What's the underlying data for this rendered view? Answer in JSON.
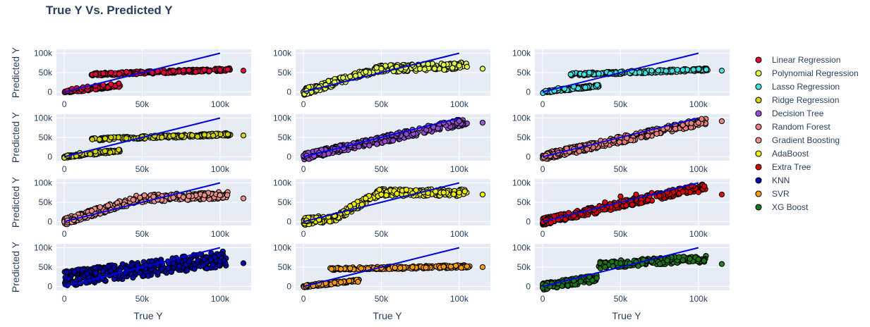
{
  "chart_data": {
    "type": "scatter",
    "title": "True Y Vs. Predicted Y",
    "xlabel": "True Y",
    "ylabel": "Predicted Y",
    "xlim": [
      -5000,
      120000
    ],
    "x_ticks": [
      0,
      50000,
      100000
    ],
    "x_tick_labels": [
      "0",
      "50k",
      "100k"
    ],
    "y_ticks": [
      0,
      50000,
      100000
    ],
    "y_tick_labels": [
      "0",
      "50k",
      "100k"
    ],
    "identity_line": {
      "from": [
        0,
        0
      ],
      "to": [
        100000,
        100000
      ],
      "color": "#0000dd"
    },
    "legend_position": "right",
    "panels": [
      {
        "name": "Linear Regression",
        "color": "#e8003a",
        "ylim": [
          -10000,
          110000
        ],
        "pattern": "flat",
        "points": [
          [
            2000,
            3000
          ],
          [
            5000,
            8000
          ],
          [
            8000,
            10000
          ],
          [
            12000,
            12000
          ],
          [
            15000,
            14000
          ],
          [
            20000,
            16000
          ],
          [
            25000,
            18000
          ],
          [
            30000,
            20000
          ],
          [
            35000,
            22000
          ],
          [
            18000,
            45000
          ],
          [
            20000,
            46000
          ],
          [
            25000,
            48000
          ],
          [
            30000,
            50000
          ],
          [
            40000,
            52000
          ],
          [
            50000,
            52000
          ],
          [
            60000,
            53000
          ],
          [
            70000,
            55000
          ],
          [
            80000,
            56000
          ],
          [
            90000,
            57000
          ],
          [
            100000,
            57000
          ],
          [
            105000,
            58000
          ],
          [
            115000,
            55000
          ]
        ]
      },
      {
        "name": "Polynomial Regression",
        "color": "#e6ff3f",
        "ylim": [
          -10000,
          110000
        ],
        "pattern": "poly",
        "points": [
          [
            2000,
            3000
          ],
          [
            10000,
            12000
          ],
          [
            20000,
            25000
          ],
          [
            30000,
            40000
          ],
          [
            40000,
            52000
          ],
          [
            50000,
            60000
          ],
          [
            60000,
            65000
          ],
          [
            70000,
            70000
          ],
          [
            80000,
            72000
          ],
          [
            90000,
            70000
          ],
          [
            100000,
            68000
          ],
          [
            105000,
            65000
          ],
          [
            115000,
            60000
          ]
        ]
      },
      {
        "name": "Lasso Regression",
        "color": "#3fe6e6",
        "ylim": [
          -10000,
          110000
        ],
        "pattern": "flat",
        "points": [
          [
            2000,
            3000
          ],
          [
            10000,
            10000
          ],
          [
            20000,
            14000
          ],
          [
            35000,
            18000
          ],
          [
            18000,
            45000
          ],
          [
            30000,
            50000
          ],
          [
            50000,
            52000
          ],
          [
            70000,
            55000
          ],
          [
            90000,
            57000
          ],
          [
            105000,
            58000
          ],
          [
            115000,
            55000
          ]
        ]
      },
      {
        "name": "Ridge Regression",
        "color": "#d4d400",
        "ylim": [
          -10000,
          110000
        ],
        "pattern": "flat",
        "points": [
          [
            2000,
            3000
          ],
          [
            10000,
            10000
          ],
          [
            20000,
            14000
          ],
          [
            35000,
            18000
          ],
          [
            18000,
            45000
          ],
          [
            30000,
            50000
          ],
          [
            50000,
            52000
          ],
          [
            70000,
            55000
          ],
          [
            90000,
            57000
          ],
          [
            105000,
            58000
          ],
          [
            115000,
            55000
          ]
        ]
      },
      {
        "name": "Decision Tree",
        "color": "#9a4bd9",
        "ylim": [
          -10000,
          110000
        ],
        "pattern": "tree",
        "points": [
          [
            2000,
            3000
          ],
          [
            10000,
            10000
          ],
          [
            20000,
            20000
          ],
          [
            30000,
            30000
          ],
          [
            40000,
            40000
          ],
          [
            50000,
            50000
          ],
          [
            60000,
            60000
          ],
          [
            70000,
            70000
          ],
          [
            80000,
            80000
          ],
          [
            90000,
            88000
          ],
          [
            100000,
            92000
          ],
          [
            115000,
            88000
          ]
        ]
      },
      {
        "name": "Random Forest",
        "color": "#f08080",
        "ylim": [
          -10000,
          110000
        ],
        "pattern": "tree",
        "points": [
          [
            2000,
            3000
          ],
          [
            10000,
            10000
          ],
          [
            20000,
            20000
          ],
          [
            30000,
            30000
          ],
          [
            40000,
            40000
          ],
          [
            50000,
            50000
          ],
          [
            60000,
            60000
          ],
          [
            70000,
            68000
          ],
          [
            80000,
            75000
          ],
          [
            90000,
            82000
          ],
          [
            100000,
            88000
          ],
          [
            115000,
            92000
          ]
        ]
      },
      {
        "name": "Gradient Boosting",
        "color": "#f09088",
        "ylim": [
          -10000,
          110000
        ],
        "pattern": "poly",
        "points": [
          [
            2000,
            3000
          ],
          [
            10000,
            10000
          ],
          [
            20000,
            20000
          ],
          [
            30000,
            30000
          ],
          [
            40000,
            40000
          ],
          [
            50000,
            50000
          ],
          [
            60000,
            57000
          ],
          [
            70000,
            62000
          ],
          [
            80000,
            66000
          ],
          [
            90000,
            68000
          ],
          [
            100000,
            68000
          ],
          [
            115000,
            60000
          ]
        ]
      },
      {
        "name": "AdaBoost",
        "color": "#f2f200",
        "ylim": [
          -10000,
          110000
        ],
        "pattern": "ada",
        "points": [
          [
            2000,
            3000
          ],
          [
            10000,
            5000
          ],
          [
            20000,
            15000
          ],
          [
            30000,
            40000
          ],
          [
            40000,
            60000
          ],
          [
            50000,
            70000
          ],
          [
            60000,
            72000
          ],
          [
            70000,
            73000
          ],
          [
            80000,
            74000
          ],
          [
            90000,
            75000
          ],
          [
            100000,
            75000
          ],
          [
            115000,
            70000
          ]
        ]
      },
      {
        "name": "Extra Tree",
        "color": "#e00000",
        "ylim": [
          -10000,
          110000
        ],
        "pattern": "tree",
        "points": [
          [
            2000,
            3000
          ],
          [
            10000,
            5000
          ],
          [
            20000,
            15000
          ],
          [
            30000,
            30000
          ],
          [
            40000,
            50000
          ],
          [
            50000,
            65000
          ],
          [
            60000,
            70000
          ],
          [
            70000,
            74000
          ],
          [
            80000,
            76000
          ],
          [
            90000,
            77000
          ],
          [
            100000,
            76000
          ],
          [
            115000,
            70000
          ]
        ]
      },
      {
        "name": "KNN",
        "color": "#0000b0",
        "ylim": [
          -10000,
          110000
        ],
        "pattern": "knn",
        "points": [
          [
            2000,
            3000
          ],
          [
            10000,
            20000
          ],
          [
            20000,
            35000
          ],
          [
            30000,
            40000
          ],
          [
            40000,
            45000
          ],
          [
            50000,
            50000
          ],
          [
            60000,
            55000
          ],
          [
            70000,
            60000
          ],
          [
            80000,
            65000
          ],
          [
            90000,
            70000
          ],
          [
            100000,
            65000
          ],
          [
            115000,
            60000
          ]
        ]
      },
      {
        "name": "SVR",
        "color": "#ff9d00",
        "ylim": [
          -10000,
          110000
        ],
        "pattern": "flat",
        "points": [
          [
            2000,
            3000
          ],
          [
            10000,
            8000
          ],
          [
            20000,
            10000
          ],
          [
            35000,
            12000
          ],
          [
            18000,
            45000
          ],
          [
            30000,
            47000
          ],
          [
            50000,
            48000
          ],
          [
            70000,
            50000
          ],
          [
            90000,
            51000
          ],
          [
            105000,
            52000
          ],
          [
            115000,
            50000
          ]
        ]
      },
      {
        "name": "XG Boost",
        "color": "#1a7a1a",
        "ylim": [
          -10000,
          110000
        ],
        "pattern": "xgb",
        "points": [
          [
            2000,
            3000
          ],
          [
            10000,
            8000
          ],
          [
            20000,
            15000
          ],
          [
            30000,
            25000
          ],
          [
            40000,
            50000
          ],
          [
            50000,
            60000
          ],
          [
            60000,
            63000
          ],
          [
            70000,
            65000
          ],
          [
            80000,
            67000
          ],
          [
            90000,
            68000
          ],
          [
            100000,
            70000
          ],
          [
            115000,
            58000
          ]
        ]
      }
    ]
  }
}
